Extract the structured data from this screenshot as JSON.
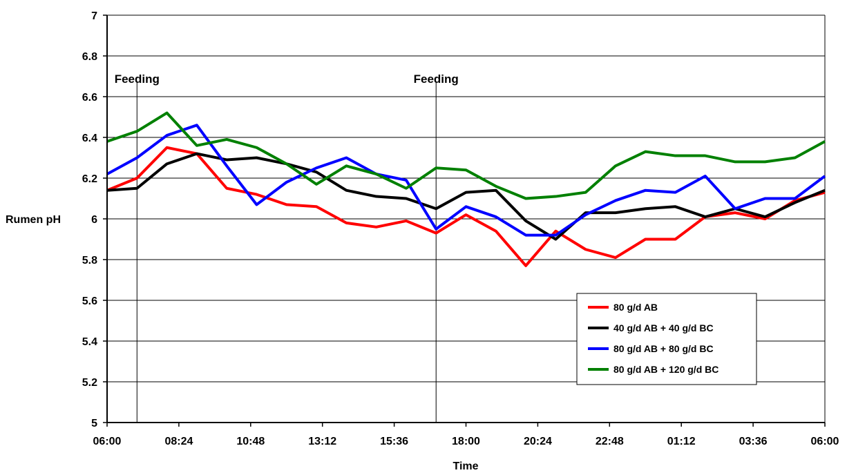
{
  "chart_data": {
    "type": "line",
    "title": "",
    "xlabel": "Time",
    "ylabel": "Rumen pH",
    "x_tick_labels": [
      "06:00",
      "08:24",
      "10:48",
      "13:12",
      "15:36",
      "18:00",
      "20:24",
      "22:48",
      "01:12",
      "03:36",
      "06:00"
    ],
    "x_tick_hours": [
      0,
      2.4,
      4.8,
      7.2,
      9.6,
      12,
      14.4,
      16.8,
      19.2,
      21.6,
      24
    ],
    "xlim": [
      0,
      24
    ],
    "ylim": [
      5,
      7
    ],
    "y_ticks": [
      "5",
      "5.2",
      "5.4",
      "5.6",
      "5.8",
      "6",
      "6.2",
      "6.4",
      "6.6",
      "6.8",
      "7"
    ],
    "grid": "horizontal",
    "legend_position": "bottom-right",
    "x_hours": [
      0,
      1,
      2,
      3,
      4,
      5,
      6,
      7,
      8,
      9,
      10,
      11,
      12,
      13,
      14,
      15,
      16,
      17,
      18,
      19,
      20,
      21,
      22,
      23,
      24
    ],
    "series": [
      {
        "name": "80 g/d AB",
        "color": "#ff0000",
        "values": [
          6.14,
          6.2,
          6.35,
          6.32,
          6.15,
          6.12,
          6.07,
          6.06,
          5.98,
          5.96,
          5.99,
          5.93,
          6.02,
          5.94,
          5.77,
          5.94,
          5.85,
          5.81,
          5.9,
          5.9,
          6.01,
          6.03,
          6.0,
          6.09,
          6.13
        ]
      },
      {
        "name": "40 g/d AB + 40 g/d BC",
        "color": "#000000",
        "values": [
          6.14,
          6.15,
          6.27,
          6.32,
          6.29,
          6.3,
          6.27,
          6.23,
          6.14,
          6.11,
          6.1,
          6.05,
          6.13,
          6.14,
          5.99,
          5.9,
          6.03,
          6.03,
          6.05,
          6.06,
          6.01,
          6.05,
          6.01,
          6.08,
          6.14
        ]
      },
      {
        "name": "80 g/d AB + 80 g/d BC",
        "color": "#0000ff",
        "values": [
          6.22,
          6.3,
          6.41,
          6.46,
          6.26,
          6.07,
          6.18,
          6.25,
          6.3,
          6.22,
          6.19,
          5.95,
          6.06,
          6.01,
          5.92,
          5.92,
          6.02,
          6.09,
          6.14,
          6.13,
          6.21,
          6.05,
          6.1,
          6.1,
          6.21
        ]
      },
      {
        "name": "80 g/d AB + 120 g/d BC",
        "color": "#008000",
        "values": [
          6.38,
          6.43,
          6.52,
          6.36,
          6.39,
          6.35,
          6.27,
          6.17,
          6.26,
          6.22,
          6.15,
          6.25,
          6.24,
          6.16,
          6.1,
          6.11,
          6.13,
          6.26,
          6.33,
          6.31,
          6.31,
          6.28,
          6.28,
          6.3,
          6.38
        ]
      }
    ],
    "annotations": [
      {
        "label": "Feeding",
        "x_hour": 1
      },
      {
        "label": "Feeding",
        "x_hour": 11
      }
    ]
  }
}
